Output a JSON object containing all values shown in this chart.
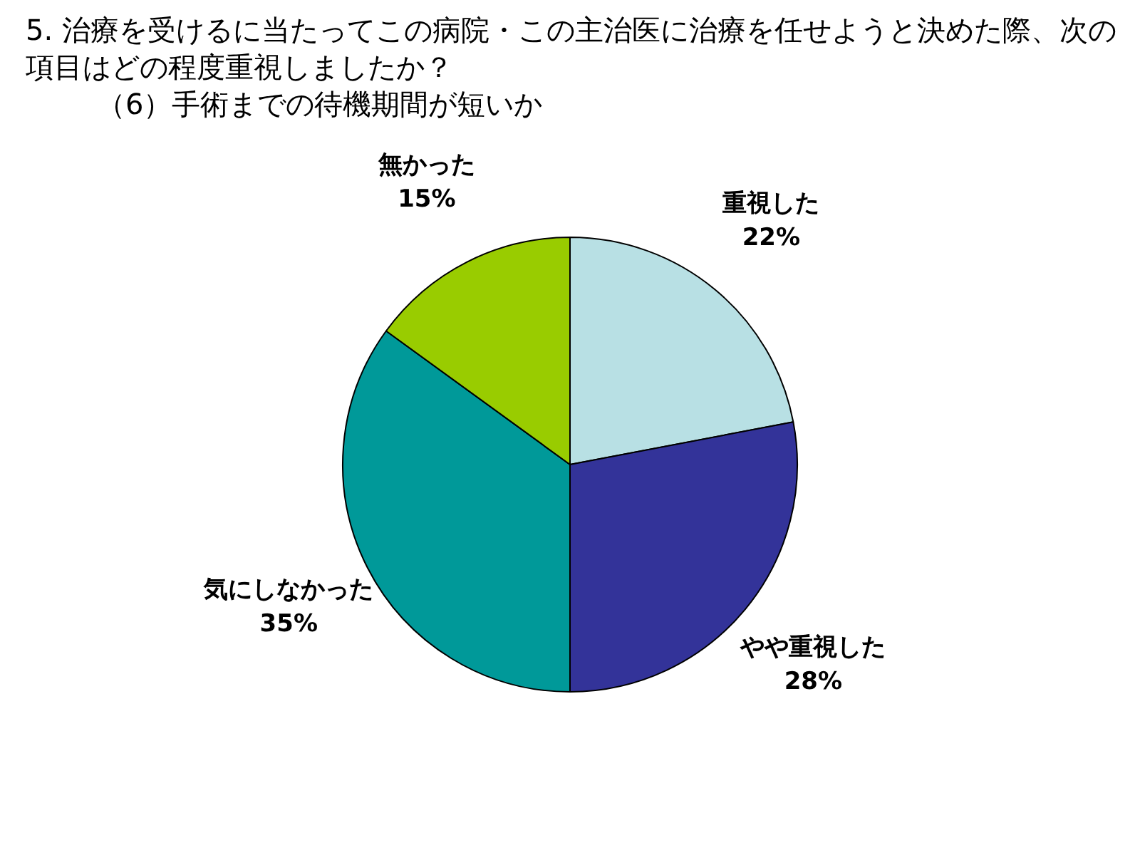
{
  "chart_data": {
    "type": "pie",
    "title": "5. 治療を受けるに当たってこの病院・この主治医に治療を任せようと決めた際、次の項目はどの程度重視しましたか？",
    "subtitle": "（6）手術までの待機期間が短いか",
    "categories": [
      "重視した",
      "やや重視した",
      "気にしなかった",
      "無かった"
    ],
    "values": [
      22,
      28,
      35,
      15
    ],
    "colors": [
      "#b8e0e4",
      "#333399",
      "#009999",
      "#99cc00"
    ],
    "value_labels": [
      "22%",
      "28%",
      "35%",
      "15%"
    ],
    "legend": false
  }
}
